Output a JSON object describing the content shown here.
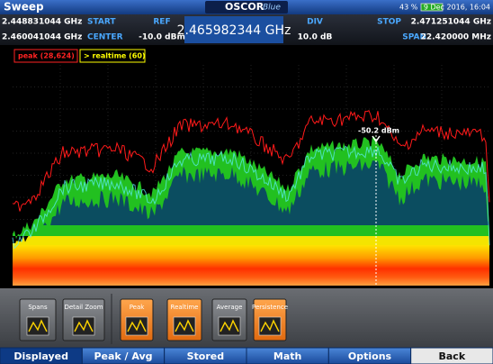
{
  "header": {
    "title": "Sweep",
    "logo": "OSCOR",
    "logo_sub": "Blue",
    "battery": "43 %",
    "datetime": "9 Dec 2016, 16:04"
  },
  "info": {
    "start": {
      "value": "2.448831044 GHz",
      "label": "START"
    },
    "center": {
      "value": "2.460041044 GHz",
      "label": "CENTER"
    },
    "ref": {
      "label": "REF",
      "value": "-10.0 dBm"
    },
    "frequency": "2.465982344 GHz",
    "div": {
      "label": "DIV",
      "value": "10.0 dB"
    },
    "stop": {
      "label": "STOP",
      "value": "2.471251044 GHz"
    },
    "span": {
      "label": "SPAN",
      "value": "22.420000 MHz"
    }
  },
  "legend": {
    "peak": "peak (28,624)",
    "realtime": "> realtime (60)"
  },
  "marker": "-50.2 dBm",
  "buttons": [
    "Spans",
    "Detail Zoom",
    "Peak",
    "Realtime",
    "Average",
    "Persistence"
  ],
  "tabs": [
    "Displayed",
    "Peak / Avg",
    "Stored",
    "Math",
    "Options",
    "Back"
  ]
}
